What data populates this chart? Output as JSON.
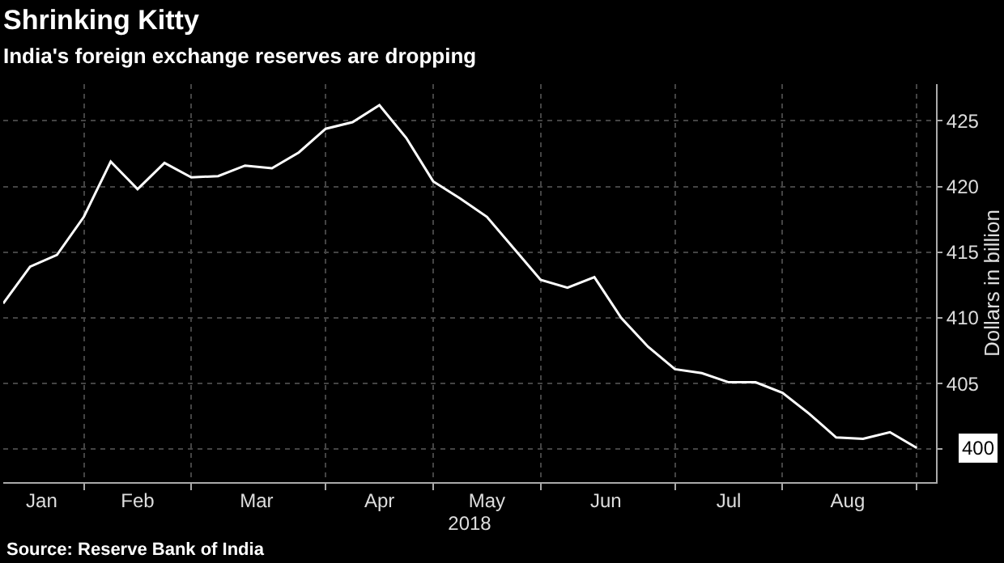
{
  "chart_data": {
    "type": "line",
    "title": "Shrinking Kitty",
    "subtitle": "India's foreign exchange reserves are dropping",
    "xlabel": "2018",
    "ylabel": "Dollars in billion",
    "x": [
      "2018-01-12",
      "2018-01-19",
      "2018-01-26",
      "2018-02-02",
      "2018-02-09",
      "2018-02-16",
      "2018-02-23",
      "2018-03-02",
      "2018-03-09",
      "2018-03-16",
      "2018-03-23",
      "2018-03-30",
      "2018-04-06",
      "2018-04-13",
      "2018-04-20",
      "2018-04-27",
      "2018-05-04",
      "2018-05-11",
      "2018-05-18",
      "2018-05-25",
      "2018-06-01",
      "2018-06-08",
      "2018-06-15",
      "2018-06-22",
      "2018-06-29",
      "2018-07-06",
      "2018-07-13",
      "2018-07-20",
      "2018-07-27",
      "2018-08-03",
      "2018-08-10",
      "2018-08-17",
      "2018-08-24",
      "2018-08-31",
      "2018-09-07"
    ],
    "series": [
      {
        "color": "#ffffff",
        "values": [
          411.1,
          413.9,
          414.8,
          417.7,
          421.9,
          419.8,
          421.8,
          420.7,
          420.8,
          421.6,
          421.4,
          422.6,
          424.4,
          424.9,
          426.2,
          423.7,
          420.4,
          419.1,
          417.7,
          415.3,
          412.9,
          412.3,
          413.1,
          410.0,
          407.8,
          406.1,
          405.8,
          405.1,
          405.1,
          404.3,
          402.7,
          400.9,
          400.8,
          401.3,
          400.1
        ]
      }
    ],
    "xlim": [
      "2018-01-12",
      "2018-09-12"
    ],
    "xticks": [
      {
        "value": "2018-01-22",
        "label": "Jan"
      },
      {
        "value": "2018-02-02",
        "label": null
      },
      {
        "value": "2018-02-16",
        "label": "Feb"
      },
      {
        "value": "2018-03-02",
        "label": null
      },
      {
        "value": "2018-03-19",
        "label": "Mar"
      },
      {
        "value": "2018-04-06",
        "label": null
      },
      {
        "value": "2018-04-20",
        "label": "Apr"
      },
      {
        "value": "2018-05-04",
        "label": null
      },
      {
        "value": "2018-05-18",
        "label": "May"
      },
      {
        "value": "2018-06-01",
        "label": null
      },
      {
        "value": "2018-06-18",
        "label": "Jun"
      },
      {
        "value": "2018-07-06",
        "label": null
      },
      {
        "value": "2018-07-20",
        "label": "Jul"
      },
      {
        "value": "2018-08-03",
        "label": null
      },
      {
        "value": "2018-08-20",
        "label": "Aug"
      },
      {
        "value": "2018-09-07",
        "label": null
      }
    ],
    "ylim": [
      397.5,
      427.8
    ],
    "yticks": [
      {
        "value": 400,
        "label": null
      },
      405,
      410,
      415,
      420,
      425
    ],
    "grid": true,
    "marker": "none",
    "line_style": "solid",
    "annotations": [
      {
        "text": "400",
        "x": "2018-09-07",
        "y": 400.1
      },
      "Source: Reserve Bank of India"
    ]
  }
}
